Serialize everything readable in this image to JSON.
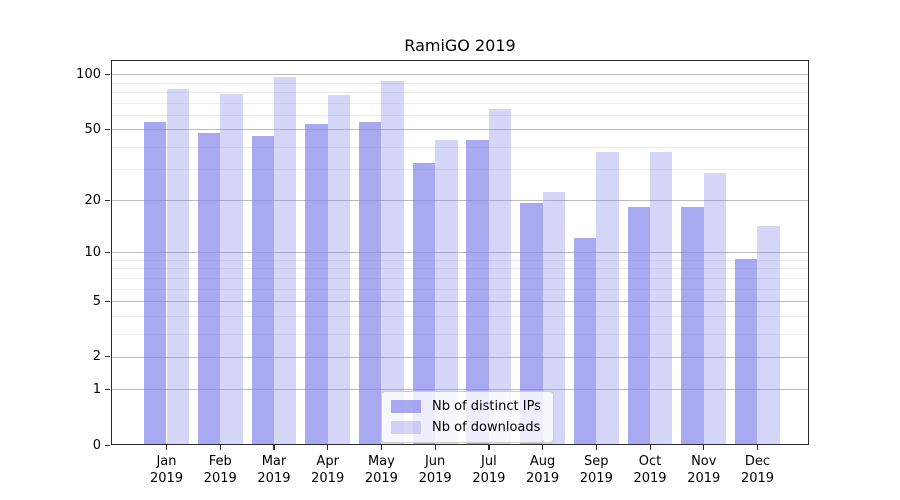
{
  "chart_data": {
    "type": "bar",
    "title": "RamiGO 2019",
    "categories": [
      "Jan 2019",
      "Feb 2019",
      "Mar 2019",
      "Apr 2019",
      "May 2019",
      "Jun 2019",
      "Jul 2019",
      "Aug 2019",
      "Sep 2019",
      "Oct 2019",
      "Nov 2019",
      "Dec 2019"
    ],
    "series": [
      {
        "name": "Nb of distinct IPs",
        "color": "rgba(132,132,236,0.70)",
        "values": [
          54,
          47,
          45,
          53,
          54,
          32,
          43,
          19,
          12,
          18,
          18,
          9
        ]
      },
      {
        "name": "Nb of downloads",
        "color": "rgba(132,132,236,0.33)",
        "values": [
          82,
          77,
          95,
          76,
          91,
          43,
          64,
          22,
          37,
          37,
          28,
          14
        ]
      }
    ],
    "y_axis": {
      "scale": "log10(value+1)",
      "major_ticks": [
        0,
        1,
        2,
        5,
        10,
        20,
        50,
        100
      ],
      "minor_ticks": [
        3,
        4,
        6,
        7,
        8,
        9,
        30,
        40,
        60,
        70,
        80,
        90
      ],
      "max": 118
    },
    "grid": true,
    "legend_position": "bottom-center",
    "colors": {
      "grid_major": "#bdbdbd",
      "grid_minor": "#ececec",
      "spine": "#2a2a2a",
      "text": "#000000"
    }
  }
}
